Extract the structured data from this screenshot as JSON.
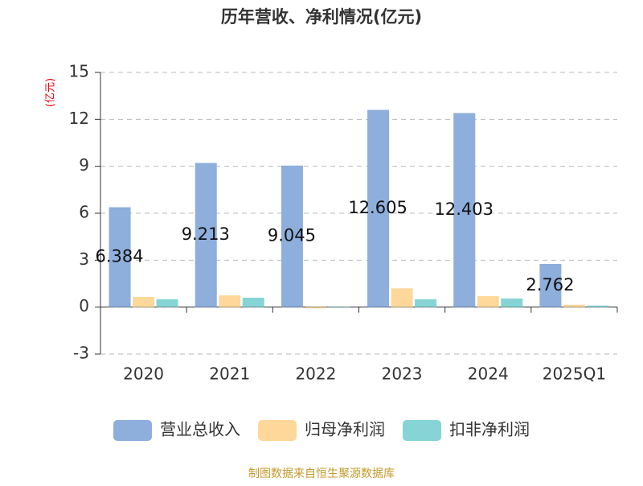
{
  "chart_data": {
    "type": "bar",
    "title": "历年营收、净利情况(亿元)",
    "y_label": "(亿元)",
    "categories": [
      "2020",
      "2021",
      "2022",
      "2023",
      "2024",
      "2025Q1"
    ],
    "series": [
      {
        "name": "营业总收入",
        "color": "#8eaedc",
        "values": [
          6.384,
          9.213,
          9.045,
          12.605,
          12.403,
          2.762
        ],
        "data_labels": true
      },
      {
        "name": "归母净利润",
        "color": "#fdd89a",
        "values": [
          0.65,
          0.75,
          -0.08,
          1.2,
          0.7,
          0.15
        ]
      },
      {
        "name": "扣非净利润",
        "color": "#86d4d6",
        "values": [
          0.5,
          0.6,
          -0.04,
          0.5,
          0.55,
          0.1
        ]
      }
    ],
    "ylim": [
      -3,
      15
    ],
    "yticks": [
      -3,
      0,
      3,
      6,
      9,
      12,
      15
    ],
    "grid": true,
    "source": "制图数据来自恒生聚源数据库"
  }
}
